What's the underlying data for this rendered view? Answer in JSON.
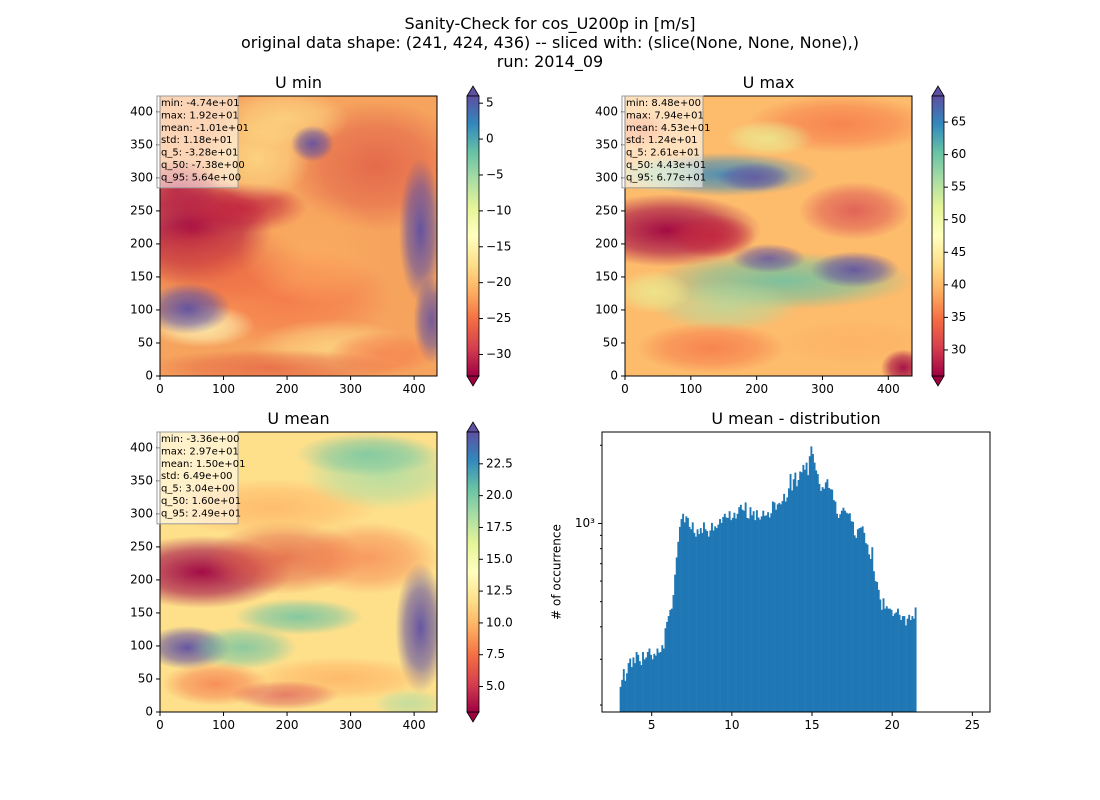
{
  "figure": {
    "title_lines": [
      "Sanity-Check for cos_U200p in [m/s]",
      "original data shape: (241, 424, 436) -- sliced with: (slice(None, None, None),)",
      "run: 2014_09"
    ]
  },
  "colors": {
    "histogram_bar": "#1f77b4",
    "stats_box_fill": "#ffffff",
    "spectral": [
      "#9e0142",
      "#d53e4f",
      "#f46d43",
      "#fdae61",
      "#fee08b",
      "#ffffbf",
      "#e6f598",
      "#abdda4",
      "#66c2a5",
      "#3288bd",
      "#5e4fa2"
    ]
  },
  "chart_data": [
    {
      "type": "heatmap",
      "title": "U min",
      "colormap": "Spectral",
      "grid": false,
      "x_ticks": [
        0,
        100,
        200,
        300,
        400
      ],
      "y_ticks": [
        0,
        50,
        100,
        150,
        200,
        250,
        300,
        350,
        400
      ],
      "xlim": [
        0,
        436
      ],
      "ylim": [
        0,
        424
      ],
      "color_range": [
        -33,
        6
      ],
      "colorbar_ticks": [
        5,
        0,
        -5,
        -10,
        -15,
        -20,
        -25,
        -30
      ],
      "colorbar_labels": [
        "5",
        "0",
        "−5",
        "−10",
        "−15",
        "−20",
        "−25",
        "−30"
      ],
      "colorbar_extend": "both",
      "stats_box_location": "upper-left",
      "stats": [
        "min: -4.74e+01",
        "max: 1.92e+01",
        "mean: -1.01e+01",
        "std: 1.18e+01",
        "q_5: -3.28e+01",
        "q_50: -7.38e+00",
        "q_95: 5.64e+00"
      ]
    },
    {
      "type": "heatmap",
      "title": "U max",
      "colormap": "Spectral",
      "grid": false,
      "x_ticks": [
        0,
        100,
        200,
        300,
        400
      ],
      "y_ticks": [
        0,
        50,
        100,
        150,
        200,
        250,
        300,
        350,
        400
      ],
      "xlim": [
        0,
        436
      ],
      "ylim": [
        0,
        424
      ],
      "color_range": [
        26,
        69
      ],
      "colorbar_ticks": [
        65,
        60,
        55,
        50,
        45,
        40,
        35,
        30
      ],
      "colorbar_labels": [
        "65",
        "60",
        "55",
        "50",
        "45",
        "40",
        "35",
        "30"
      ],
      "colorbar_extend": "both",
      "stats_box_location": "upper-left",
      "stats": [
        "min: 8.48e+00",
        "max: 7.94e+01",
        "mean: 4.53e+01",
        "std: 1.24e+01",
        "q_5: 2.61e+01",
        "q_50: 4.43e+01",
        "q_95: 6.77e+01"
      ]
    },
    {
      "type": "heatmap",
      "title": "U mean",
      "colormap": "Spectral",
      "grid": false,
      "x_ticks": [
        0,
        100,
        200,
        300,
        400
      ],
      "y_ticks": [
        0,
        50,
        100,
        150,
        200,
        250,
        300,
        350,
        400
      ],
      "xlim": [
        0,
        436
      ],
      "ylim": [
        0,
        424
      ],
      "color_range": [
        3,
        25
      ],
      "colorbar_ticks": [
        22.5,
        20.0,
        17.5,
        15.0,
        12.5,
        10.0,
        7.5,
        5.0
      ],
      "colorbar_labels": [
        "22.5",
        "20.0",
        "17.5",
        "15.0",
        "12.5",
        "10.0",
        "7.5",
        "5.0"
      ],
      "colorbar_extend": "both",
      "stats_box_location": "upper-left",
      "stats": [
        "min: -3.36e+00",
        "max: 2.97e+01",
        "mean: 1.50e+01",
        "std: 6.49e+00",
        "q_5: 3.04e+00",
        "q_50: 1.60e+01",
        "q_95: 2.49e+01"
      ]
    },
    {
      "type": "bar",
      "title": "U mean - distribution",
      "xlabel": "",
      "ylabel": "# of occurrence",
      "y_scale": "log",
      "grid": false,
      "xlim": [
        1.9,
        26.1
      ],
      "ylim": [
        188,
        2250
      ],
      "x_ticks": [
        5,
        10,
        15,
        20,
        25
      ],
      "y_major_tick": 1000,
      "y_major_label": "10³",
      "y_minor_ticks": [
        200,
        300,
        400,
        500,
        600,
        700,
        800,
        900,
        2000
      ],
      "bin_start": 3.0,
      "bin_width": 0.1,
      "counts": [
        235,
        250,
        275,
        248,
        265,
        290,
        302,
        280,
        305,
        290,
        320,
        312,
        295,
        285,
        320,
        300,
        305,
        320,
        330,
        312,
        300,
        315,
        310,
        330,
        318,
        320,
        340,
        330,
        395,
        418,
        440,
        465,
        470,
        530,
        635,
        740,
        850,
        970,
        1040,
        1090,
        1010,
        1065,
        1050,
        970,
        950,
        1010,
        920,
        890,
        950,
        910,
        960,
        920,
        1010,
        950,
        935,
        890,
        940,
        1005,
        940,
        975,
        960,
        990,
        1040,
        1005,
        1060,
        1090,
        1055,
        1050,
        1115,
        1030,
        1050,
        1100,
        1045,
        1090,
        1155,
        1180,
        1130,
        1120,
        1205,
        1050,
        1045,
        1155,
        1075,
        1115,
        1030,
        1125,
        1055,
        1035,
        1065,
        1120,
        1070,
        1075,
        1105,
        1055,
        1095,
        1215,
        1205,
        1130,
        1185,
        1200,
        1185,
        1220,
        1300,
        1215,
        1260,
        1365,
        1550,
        1340,
        1480,
        1570,
        1390,
        1470,
        1585,
        1575,
        1680,
        1610,
        1715,
        1535,
        1815,
        1980,
        1850,
        1715,
        1600,
        1550,
        1420,
        1335,
        1380,
        1360,
        1440,
        1480,
        1370,
        1355,
        1350,
        1230,
        1215,
        1090,
        1050,
        1085,
        1120,
        1150,
        1120,
        1100,
        1090,
        1095,
        1020,
        1015,
        900,
        880,
        950,
        960,
        965,
        975,
        920,
        840,
        830,
        760,
        730,
        810,
        655,
        600,
        595,
        555,
        510,
        465,
        515,
        470,
        480,
        470,
        470,
        465,
        440,
        450,
        455,
        470,
        445,
        425,
        440,
        440,
        405,
        430,
        445,
        425,
        440,
        430,
        475
      ]
    }
  ]
}
